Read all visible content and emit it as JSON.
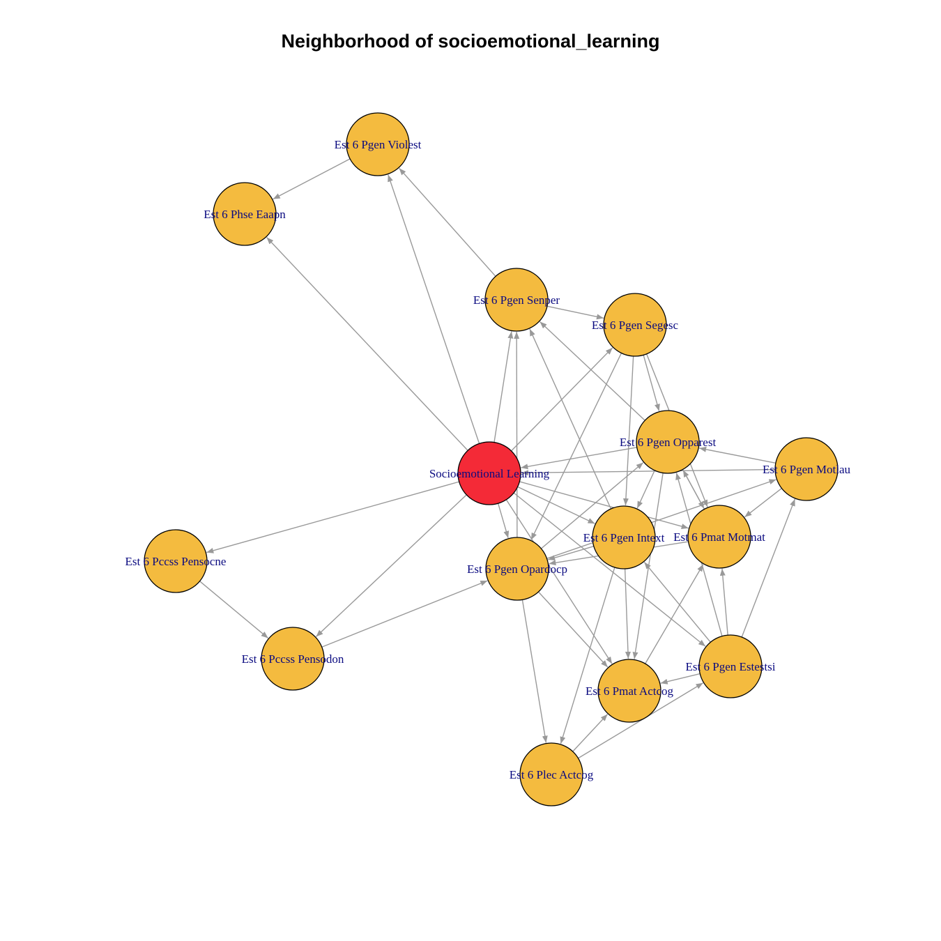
{
  "title": "Neighborhood of socioemotional_learning",
  "colors": {
    "focus_node": "#f42a37",
    "node": "#f4bb3f",
    "node_border": "#000000",
    "edge": "#999999",
    "label": "#0a0a80"
  },
  "nodes": [
    {
      "id": "sel",
      "label": "Socioemotional Learning",
      "focus": true
    },
    {
      "id": "violest",
      "label": "Est 6 Pgen Violest"
    },
    {
      "id": "eaapn",
      "label": "Est 6 Phse Eaapn"
    },
    {
      "id": "senper",
      "label": "Est 6 Pgen Senper"
    },
    {
      "id": "segesc",
      "label": "Est 6 Pgen Segesc"
    },
    {
      "id": "opparest",
      "label": "Est 6 Pgen Opparest"
    },
    {
      "id": "motlau",
      "label": "Est 6 Pgen Motlau"
    },
    {
      "id": "intext",
      "label": "Est 6 Pgen Intext"
    },
    {
      "id": "motmat",
      "label": "Est 6 Pmat Motmat"
    },
    {
      "id": "opardocp",
      "label": "Est 6 Pgen Opardocp"
    },
    {
      "id": "pensocne",
      "label": "Est 6 Pccss Pensocne"
    },
    {
      "id": "pensodon",
      "label": "Est 6 Pccss Pensodon"
    },
    {
      "id": "estestsi",
      "label": "Est 6 Pgen Estestsi"
    },
    {
      "id": "pmatactcog",
      "label": "Est 6 Pmat Actcog"
    },
    {
      "id": "plecactcog",
      "label": "Est 6 Plec Actcog"
    }
  ],
  "edges": [
    {
      "from": "violest",
      "to": "eaapn"
    },
    {
      "from": "sel",
      "to": "eaapn"
    },
    {
      "from": "sel",
      "to": "violest"
    },
    {
      "from": "senper",
      "to": "violest"
    },
    {
      "from": "senper",
      "to": "segesc"
    },
    {
      "from": "sel",
      "to": "senper"
    },
    {
      "from": "opardocp",
      "to": "senper"
    },
    {
      "from": "intext",
      "to": "senper"
    },
    {
      "from": "opparest",
      "to": "senper"
    },
    {
      "from": "sel",
      "to": "segesc"
    },
    {
      "from": "segesc",
      "to": "opardocp"
    },
    {
      "from": "segesc",
      "to": "opparest"
    },
    {
      "from": "segesc",
      "to": "intext"
    },
    {
      "from": "segesc",
      "to": "motmat"
    },
    {
      "from": "opparest",
      "to": "sel"
    },
    {
      "from": "motlau",
      "to": "sel"
    },
    {
      "from": "motlau",
      "to": "opparest"
    },
    {
      "from": "motlau",
      "to": "motmat"
    },
    {
      "from": "sel",
      "to": "pensocne"
    },
    {
      "from": "sel",
      "to": "pensodon"
    },
    {
      "from": "sel",
      "to": "opardocp"
    },
    {
      "from": "sel",
      "to": "intext"
    },
    {
      "from": "sel",
      "to": "motmat"
    },
    {
      "from": "sel",
      "to": "pmatactcog"
    },
    {
      "from": "sel",
      "to": "estestsi"
    },
    {
      "from": "pensocne",
      "to": "pensodon"
    },
    {
      "from": "pensodon",
      "to": "opardocp"
    },
    {
      "from": "opardocp",
      "to": "opparest"
    },
    {
      "from": "opardocp",
      "to": "motlau"
    },
    {
      "from": "opardocp",
      "to": "pmatactcog"
    },
    {
      "from": "opardocp",
      "to": "plecactcog"
    },
    {
      "from": "opparest",
      "to": "intext"
    },
    {
      "from": "opparest",
      "to": "motmat"
    },
    {
      "from": "opparest",
      "to": "pmatactcog"
    },
    {
      "from": "motmat",
      "to": "opparest"
    },
    {
      "from": "motmat",
      "to": "opardocp"
    },
    {
      "from": "intext",
      "to": "opardocp"
    },
    {
      "from": "intext",
      "to": "pmatactcog"
    },
    {
      "from": "intext",
      "to": "plecactcog"
    },
    {
      "from": "estestsi",
      "to": "intext"
    },
    {
      "from": "estestsi",
      "to": "motmat"
    },
    {
      "from": "estestsi",
      "to": "motlau"
    },
    {
      "from": "estestsi",
      "to": "opparest"
    },
    {
      "from": "estestsi",
      "to": "pmatactcog"
    },
    {
      "from": "pmatactcog",
      "to": "motmat"
    },
    {
      "from": "plecactcog",
      "to": "pmatactcog"
    },
    {
      "from": "plecactcog",
      "to": "estestsi"
    }
  ]
}
